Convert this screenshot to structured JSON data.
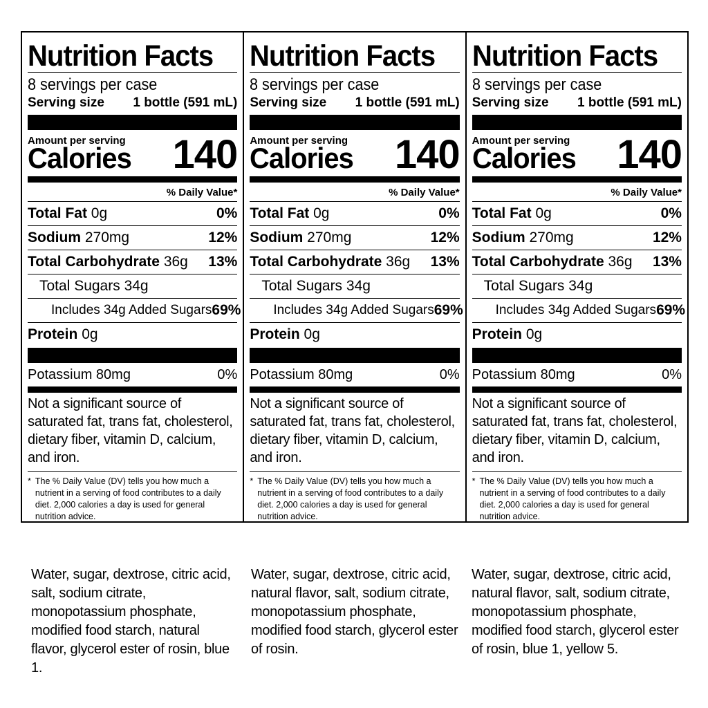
{
  "panels": [
    {
      "title": "Nutrition Facts",
      "servings_per_container": "8 servings per case",
      "serving_size_label": "Serving size",
      "serving_size_value": "1 bottle (591 mL)",
      "amount_per_serving": "Amount per serving",
      "calories_label": "Calories",
      "calories_value": "140",
      "dv_header": "% Daily Value*",
      "total_fat_label": "Total Fat",
      "total_fat_amount": "0g",
      "total_fat_dv": "0%",
      "sodium_label": "Sodium",
      "sodium_amount": "270mg",
      "sodium_dv": "12%",
      "carb_label": "Total Carbohydrate",
      "carb_amount": "36g",
      "carb_dv": "13%",
      "total_sugars": "Total Sugars 34g",
      "added_sugars": "Includes 34g Added Sugars",
      "added_sugars_dv": "69%",
      "protein_label": "Protein",
      "protein_amount": "0g",
      "potassium": "Potassium 80mg",
      "potassium_dv": "0%",
      "not_significant": "Not a significant source of saturated fat, trans fat, cholesterol, dietary fiber, vitamin D, calcium, and iron.",
      "footnote_star": "*",
      "footnote": "The % Daily Value (DV) tells you how much a nutrient in a serving of food contributes to a daily diet. 2,000 calories a day is used for general nutrition advice."
    },
    {
      "title": "Nutrition Facts",
      "servings_per_container": "8 servings per case",
      "serving_size_label": "Serving size",
      "serving_size_value": "1 bottle (591 mL)",
      "amount_per_serving": "Amount per serving",
      "calories_label": "Calories",
      "calories_value": "140",
      "dv_header": "% Daily Value*",
      "total_fat_label": "Total Fat",
      "total_fat_amount": "0g",
      "total_fat_dv": "0%",
      "sodium_label": "Sodium",
      "sodium_amount": "270mg",
      "sodium_dv": "12%",
      "carb_label": "Total Carbohydrate",
      "carb_amount": "36g",
      "carb_dv": "13%",
      "total_sugars": "Total Sugars 34g",
      "added_sugars": "Includes 34g Added Sugars",
      "added_sugars_dv": "69%",
      "protein_label": "Protein",
      "protein_amount": "0g",
      "potassium": "Potassium 80mg",
      "potassium_dv": "0%",
      "not_significant": "Not a significant source of saturated fat, trans fat, cholesterol, dietary fiber, vitamin D, calcium, and iron.",
      "footnote_star": "*",
      "footnote": "The % Daily Value (DV) tells you how much a nutrient in a serving of food contributes to a daily diet. 2,000 calories a day is used for general nutrition advice."
    },
    {
      "title": "Nutrition Facts",
      "servings_per_container": "8 servings per case",
      "serving_size_label": "Serving size",
      "serving_size_value": "1 bottle (591 mL)",
      "amount_per_serving": "Amount per serving",
      "calories_label": "Calories",
      "calories_value": "140",
      "dv_header": "% Daily Value*",
      "total_fat_label": "Total Fat",
      "total_fat_amount": "0g",
      "total_fat_dv": "0%",
      "sodium_label": "Sodium",
      "sodium_amount": "270mg",
      "sodium_dv": "12%",
      "carb_label": "Total Carbohydrate",
      "carb_amount": "36g",
      "carb_dv": "13%",
      "total_sugars": "Total Sugars 34g",
      "added_sugars": "Includes 34g Added Sugars",
      "added_sugars_dv": "69%",
      "protein_label": "Protein",
      "protein_amount": "0g",
      "potassium": "Potassium 80mg",
      "potassium_dv": "0%",
      "not_significant": "Not a significant source of saturated fat, trans fat, cholesterol, dietary fiber, vitamin D, calcium, and iron.",
      "footnote_star": "*",
      "footnote": "The % Daily Value (DV) tells you how much a nutrient in a serving of food contributes to a daily diet. 2,000 calories a day is used for general nutrition advice."
    }
  ],
  "ingredients": [
    "Water, sugar, dextrose, citric acid, salt, sodium citrate, monopotassium phosphate, modified food starch, natural flavor, glycerol ester of rosin, blue 1.",
    "Water, sugar, dextrose, citric acid, natural flavor, salt, sodium citrate, monopotassium phosphate, modified food starch, glycerol ester of rosin.",
    "Water, sugar, dextrose, citric acid, natural flavor, salt, sodium citrate, monopotassium phosphate, modified food starch, glycerol ester of rosin, blue 1, yellow 5."
  ]
}
